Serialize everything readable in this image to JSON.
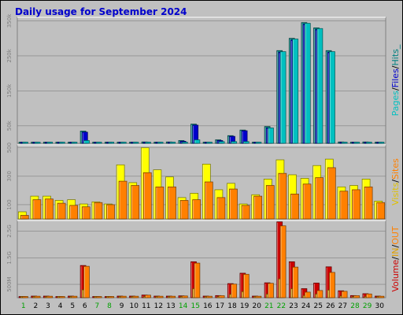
{
  "title": "Daily usage for September 2024",
  "colors": {
    "background": "#c0c0c0",
    "title": "#0000cc",
    "pages": "#00c0c0",
    "files": "#0000cc",
    "hits": "#008080",
    "visits": "#ffff00",
    "sites": "#ff8000",
    "volume": "#cc0000",
    "in": "#e0a000",
    "out": "#ff8000",
    "weekend": "#00a000"
  },
  "legend": {
    "panel1": [
      {
        "text": "Pages",
        "color": "#00c0c0"
      },
      {
        "text": "/",
        "color": "#000000"
      },
      {
        "text": "Files",
        "color": "#0000cc"
      },
      {
        "text": "/",
        "color": "#000000"
      },
      {
        "text": "Hits_",
        "color": "#008080"
      }
    ],
    "panel2": [
      {
        "text": "Visits",
        "color": "#e0c000"
      },
      {
        "text": "/",
        "color": "#000000"
      },
      {
        "text": "Sites",
        "color": "#ff8000"
      }
    ],
    "panel3": [
      {
        "text": "Volume",
        "color": "#cc0000"
      },
      {
        "text": "/",
        "color": "#000000"
      },
      {
        "text": "IN",
        "color": "#e0a000"
      },
      {
        "text": "/",
        "color": "#000000"
      },
      {
        "text": "OUT",
        "color": "#ff8000"
      }
    ]
  },
  "chart_data": [
    {
      "type": "bar",
      "name": "hits-files-pages",
      "categories": [
        "1",
        "2",
        "3",
        "4",
        "5",
        "6",
        "7",
        "8",
        "9",
        "10",
        "11",
        "12",
        "13",
        "14",
        "15",
        "16",
        "17",
        "18",
        "19",
        "20",
        "21",
        "22",
        "23",
        "24",
        "25",
        "26",
        "27",
        "28",
        "29",
        "30"
      ],
      "weekend_days": [
        "1",
        "7",
        "8",
        "14",
        "15",
        "21",
        "22",
        "28",
        "29"
      ],
      "ylim": [
        0,
        360000
      ],
      "yticks": [
        {
          "value": 50000,
          "label": "50k"
        },
        {
          "value": 150000,
          "label": "150k"
        },
        {
          "value": 250000,
          "label": "250k"
        },
        {
          "value": 350000,
          "label": "350k"
        }
      ],
      "series": [
        {
          "name": "Hits",
          "color": "#008080",
          "values": [
            2000,
            2000,
            2000,
            2000,
            3000,
            35000,
            2000,
            2000,
            2000,
            2000,
            4000,
            2000,
            4000,
            8000,
            55000,
            3000,
            10000,
            22000,
            38000,
            3000,
            48000,
            265000,
            300000,
            345000,
            330000,
            265000,
            4000,
            2000,
            4000,
            2000
          ]
        },
        {
          "name": "Files",
          "color": "#0000cc",
          "values": [
            1500,
            1500,
            1500,
            1500,
            2000,
            32000,
            1500,
            1500,
            1500,
            1500,
            3000,
            1500,
            3000,
            6000,
            52000,
            2000,
            8000,
            20000,
            36000,
            2000,
            44000,
            260000,
            295000,
            340000,
            325000,
            260000,
            3000,
            1500,
            3000,
            1500
          ]
        },
        {
          "name": "Pages",
          "color": "#00c0c0",
          "values": [
            1000,
            1000,
            1000,
            1000,
            1500,
            8000,
            1000,
            1000,
            1000,
            1000,
            2000,
            1000,
            2000,
            3000,
            10000,
            1500,
            5000,
            5000,
            5000,
            1500,
            44000,
            262000,
            298000,
            343000,
            328000,
            262000,
            2000,
            1000,
            2500,
            1000
          ]
        }
      ]
    },
    {
      "type": "bar",
      "name": "visits-sites",
      "categories": [
        "1",
        "2",
        "3",
        "4",
        "5",
        "6",
        "7",
        "8",
        "9",
        "10",
        "11",
        "12",
        "13",
        "14",
        "15",
        "16",
        "17",
        "18",
        "19",
        "20",
        "21",
        "22",
        "23",
        "24",
        "25",
        "26",
        "27",
        "28",
        "29",
        "30"
      ],
      "ylim": [
        0,
        520
      ],
      "yticks": [
        {
          "value": 100,
          "label": "100"
        },
        {
          "value": 300,
          "label": "300"
        },
        {
          "value": 500,
          "label": "500"
        }
      ],
      "series": [
        {
          "name": "Visits",
          "color": "#ffff00",
          "values": [
            50,
            160,
            160,
            130,
            135,
            105,
            120,
            105,
            380,
            255,
            500,
            345,
            295,
            150,
            180,
            385,
            205,
            250,
            105,
            170,
            280,
            415,
            310,
            285,
            375,
            420,
            225,
            235,
            280,
            125
          ]
        },
        {
          "name": "Sites",
          "color": "#ff8000",
          "values": [
            25,
            135,
            140,
            110,
            95,
            85,
            115,
            100,
            265,
            235,
            325,
            225,
            225,
            130,
            135,
            260,
            150,
            210,
            95,
            160,
            235,
            320,
            175,
            245,
            290,
            360,
            195,
            205,
            225,
            115
          ]
        }
      ]
    },
    {
      "type": "bar",
      "name": "volume-in-out",
      "categories": [
        "1",
        "2",
        "3",
        "4",
        "5",
        "6",
        "7",
        "8",
        "9",
        "10",
        "11",
        "12",
        "13",
        "14",
        "15",
        "16",
        "17",
        "18",
        "19",
        "20",
        "21",
        "22",
        "23",
        "24",
        "25",
        "26",
        "27",
        "28",
        "29",
        "30"
      ],
      "ylim": [
        0,
        2900
      ],
      "ytick_unit": "MB",
      "yticks": [
        {
          "value": 500,
          "label": "500M"
        },
        {
          "value": 1500,
          "label": "1.5G"
        },
        {
          "value": 2500,
          "label": "2.5G"
        }
      ],
      "series": [
        {
          "name": "Volume",
          "color": "#cc0000",
          "values": [
            40,
            60,
            60,
            40,
            60,
            1210,
            40,
            40,
            60,
            60,
            100,
            60,
            60,
            70,
            1350,
            60,
            80,
            530,
            920,
            60,
            560,
            2850,
            1350,
            340,
            550,
            1160,
            260,
            80,
            150,
            60
          ]
        },
        {
          "name": "IN",
          "color": "#e0a000",
          "values": [
            10,
            15,
            15,
            10,
            15,
            300,
            10,
            10,
            15,
            15,
            25,
            15,
            15,
            18,
            340,
            15,
            20,
            130,
            230,
            15,
            140,
            710,
            340,
            85,
            140,
            290,
            65,
            20,
            38,
            15
          ]
        },
        {
          "name": "OUT",
          "color": "#ff8000",
          "values": [
            35,
            55,
            55,
            35,
            55,
            1180,
            35,
            35,
            55,
            55,
            95,
            55,
            55,
            65,
            1300,
            55,
            75,
            510,
            880,
            55,
            540,
            2700,
            1150,
            210,
            270,
            950,
            240,
            75,
            140,
            55
          ]
        }
      ]
    }
  ]
}
